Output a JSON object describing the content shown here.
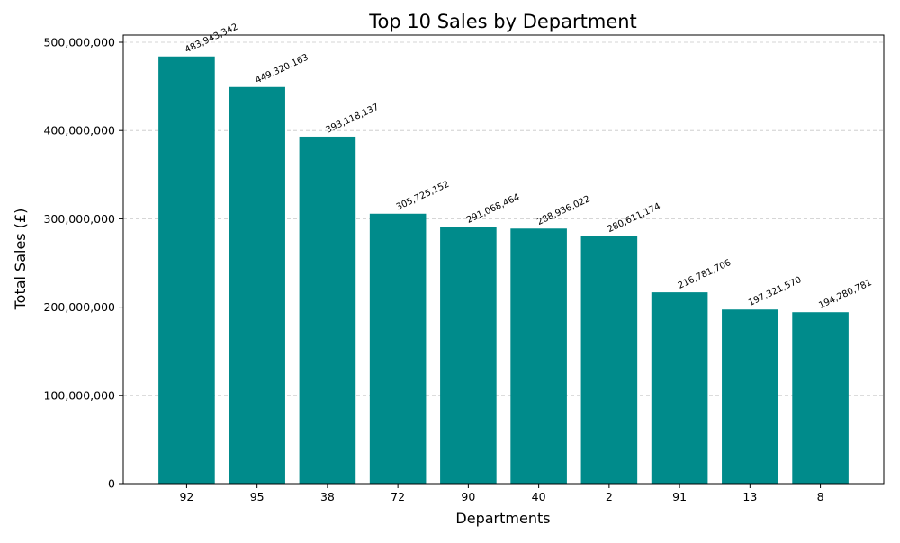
{
  "chart_data": {
    "type": "bar",
    "title": "Top 10 Sales by Department",
    "xlabel": "Departments",
    "ylabel": "Total Sales (£)",
    "categories": [
      "92",
      "95",
      "38",
      "72",
      "90",
      "40",
      "2",
      "91",
      "13",
      "8"
    ],
    "values": [
      483943342,
      449320163,
      393118137,
      305725152,
      291068464,
      288936022,
      280611174,
      216781706,
      197321570,
      194280781
    ],
    "value_labels": [
      "483,943,342",
      "449,320,163",
      "393,118,137",
      "305,725,152",
      "291,068,464",
      "288,936,022",
      "280,611,174",
      "216,781,706",
      "197,321,570",
      "194,280,781"
    ],
    "ylim": [
      0,
      508140509
    ],
    "yticks": [
      0,
      100000000,
      200000000,
      300000000,
      400000000,
      500000000
    ],
    "ytick_labels": [
      "0",
      "100,000,000",
      "200,000,000",
      "300,000,000",
      "400,000,000",
      "500,000,000"
    ],
    "grid": "y-dashed",
    "bar_color": "#008b8b",
    "grid_color": "#c8c8c8",
    "legend": "none"
  }
}
